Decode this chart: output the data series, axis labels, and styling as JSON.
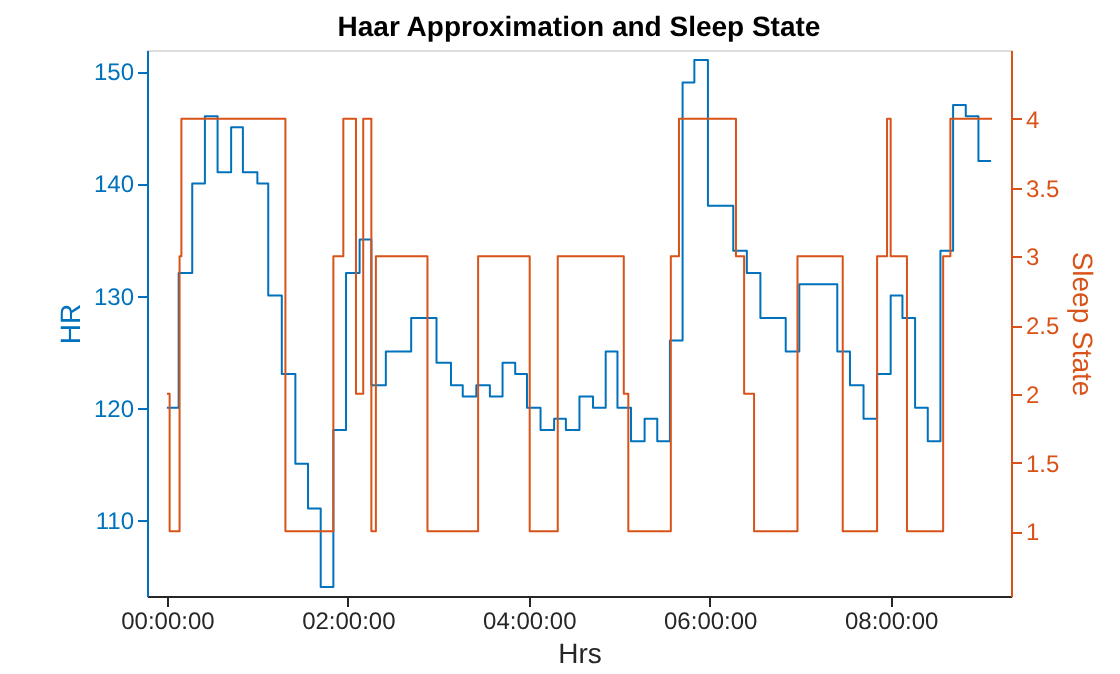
{
  "chart_data": {
    "type": "step",
    "title": "Haar Approximation and Sleep State",
    "xlabel": "Hrs",
    "ylabel": "HR",
    "y2label": "Sleep State",
    "xlim": [
      -0.22,
      9.33
    ],
    "xticks": [
      {
        "value": 0,
        "label": "00:00:00"
      },
      {
        "value": 2,
        "label": "02:00:00"
      },
      {
        "value": 4,
        "label": "04:00:00"
      },
      {
        "value": 6,
        "label": "06:00:00"
      },
      {
        "value": 8,
        "label": "08:00:00"
      }
    ],
    "ylim": [
      103.2,
      151.9
    ],
    "yticks": [
      110,
      120,
      130,
      140,
      150
    ],
    "y2lim": [
      0.53,
      4.5
    ],
    "y2ticks": [
      1,
      1.5,
      2,
      2.5,
      3,
      3.5,
      4
    ],
    "grid": false,
    "series": [
      {
        "color": "#0072bd",
        "x": [
          0,
          0.13,
          0.28,
          0.42,
          0.56,
          0.71,
          0.84,
          1.0,
          1.12,
          1.27,
          1.42,
          1.56,
          1.7,
          1.84,
          1.98,
          2.13,
          2.26,
          2.42,
          2.7,
          2.98,
          3.14,
          3.27,
          3.42,
          3.57,
          3.71,
          3.85,
          3.98,
          4.13,
          4.28,
          4.41,
          4.56,
          4.71,
          4.85,
          4.98,
          5.13,
          5.28,
          5.42,
          5.56,
          5.7,
          5.83,
          5.98,
          6.26,
          6.41,
          6.56,
          6.84,
          6.99,
          7.41,
          7.55,
          7.7,
          7.85,
          8.0,
          8.13,
          8.27,
          8.41,
          8.55,
          8.69,
          8.83,
          8.97,
          9.11
        ],
        "values": [
          120,
          132,
          140,
          146,
          141,
          145,
          141,
          140,
          130,
          123,
          115,
          111,
          104,
          118,
          132,
          135,
          122,
          125,
          128,
          124,
          122,
          121,
          122,
          121,
          124,
          123,
          120,
          118,
          119,
          118,
          121,
          120,
          125,
          120,
          117,
          119,
          117,
          126,
          149,
          151,
          138,
          134,
          132,
          128,
          125,
          131,
          125,
          122,
          119,
          123,
          130,
          128,
          120,
          117,
          134,
          147,
          146,
          142,
          142
        ]
      },
      {
        "color": "#d95319",
        "axis": "y2",
        "x": [
          0,
          0.03,
          0.14,
          0.16,
          1.31,
          1.84,
          1.95,
          2.09,
          2.17,
          2.26,
          2.31,
          2.88,
          3.44,
          4.01,
          4.32,
          5.05,
          5.1,
          5.57,
          5.66,
          6.29,
          6.38,
          6.49,
          6.97,
          7.47,
          7.85,
          7.96,
          8.0,
          8.18,
          8.58,
          8.66,
          9.12
        ],
        "values": [
          2,
          1,
          3,
          4,
          1,
          3,
          4,
          2,
          4,
          1,
          3,
          1,
          3,
          1,
          3,
          2,
          1,
          3,
          4,
          3,
          2,
          1,
          3,
          1,
          3,
          4,
          3,
          1,
          3,
          4,
          4
        ]
      }
    ]
  }
}
